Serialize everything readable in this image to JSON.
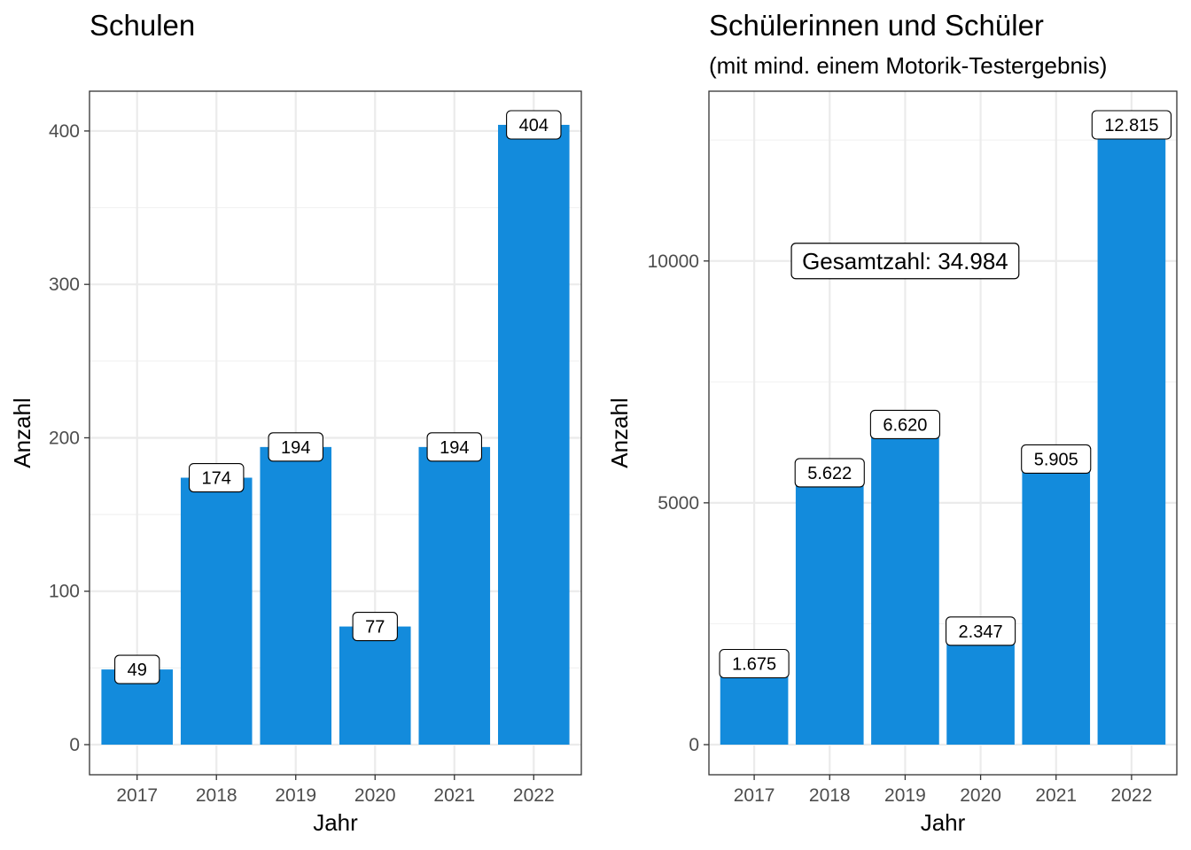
{
  "accent_color": "#138bdc",
  "chart_data": [
    {
      "type": "bar",
      "title": "Schulen",
      "subtitle": "",
      "xlabel": "Jahr",
      "ylabel": "Anzahl",
      "categories": [
        "2017",
        "2018",
        "2019",
        "2020",
        "2021",
        "2022"
      ],
      "values": [
        49,
        174,
        194,
        77,
        194,
        404
      ],
      "data_labels": [
        "49",
        "174",
        "194",
        "77",
        "194",
        "404"
      ],
      "ylim": [
        0,
        404
      ],
      "yticks": [
        0,
        100,
        200,
        300,
        400
      ],
      "grid": true,
      "bar_color": "#138bdc"
    },
    {
      "type": "bar",
      "title": "Schülerinnen und Schüler",
      "subtitle": "(mit mind. einem Motorik-Testergebnis)",
      "xlabel": "Jahr",
      "ylabel": "Anzahl",
      "categories": [
        "2017",
        "2018",
        "2019",
        "2020",
        "2021",
        "2022"
      ],
      "values": [
        1675,
        5622,
        6620,
        2347,
        5905,
        12815
      ],
      "data_labels": [
        "1.675",
        "5.622",
        "6.620",
        "2.347",
        "5.905",
        "12.815"
      ],
      "ylim": [
        0,
        12815
      ],
      "yticks": [
        0,
        5000,
        10000
      ],
      "grid": true,
      "bar_color": "#138bdc",
      "annotation": {
        "text": "Gesamtzahl:  34.984",
        "x": "2019",
        "y": 10000
      }
    }
  ]
}
